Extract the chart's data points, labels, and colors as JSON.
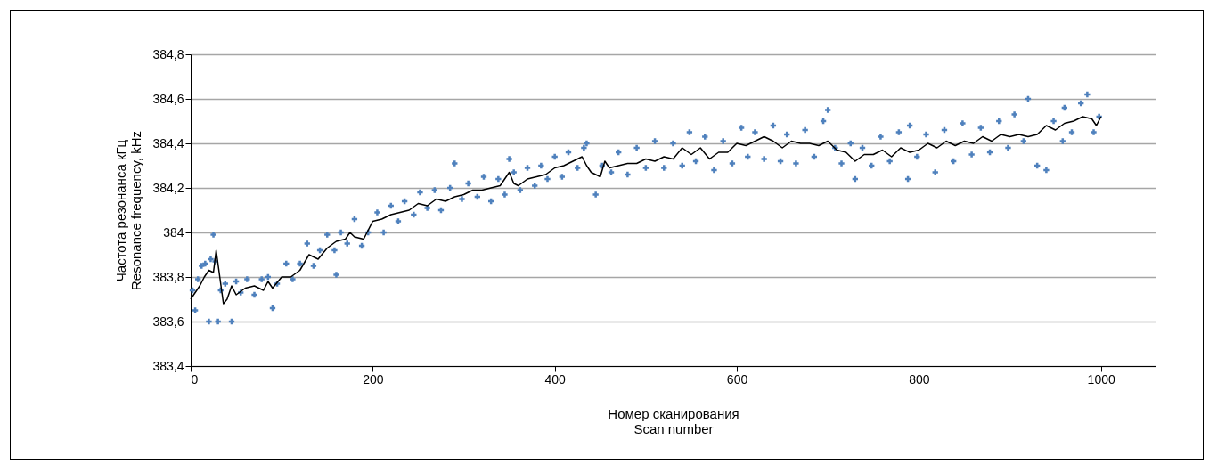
{
  "chart_data": {
    "type": "scatter",
    "xlabel": "Номер сканирования\nScan number",
    "ylabel": "Частота резонанса кГц\nResonance frequency, kHz",
    "xlim": [
      0,
      1060
    ],
    "xticks": [
      0,
      200,
      400,
      600,
      800,
      1000
    ],
    "ylim": [
      383.4,
      384.8
    ],
    "yticks": [
      {
        "value": 383.4,
        "label": "383,4"
      },
      {
        "value": 383.6,
        "label": "383,6"
      },
      {
        "value": 383.8,
        "label": "383,8"
      },
      {
        "value": 384,
        "label": "384"
      },
      {
        "value": 384.2,
        "label": "384,2"
      },
      {
        "value": 384.4,
        "label": "384,4"
      },
      {
        "value": 384.6,
        "label": "384,6"
      },
      {
        "value": 384.8,
        "label": "384,8"
      }
    ],
    "grid": "y",
    "marker": "cross",
    "series": [
      {
        "type": "scatter",
        "color": "#4f81bd",
        "x": [
          2,
          5,
          8,
          12,
          16,
          20,
          22,
          25,
          27,
          30,
          33,
          38,
          45,
          50,
          55,
          62,
          70,
          78,
          85,
          90,
          95,
          105,
          112,
          120,
          128,
          135,
          142,
          150,
          158,
          160,
          165,
          172,
          180,
          188,
          195,
          205,
          212,
          220,
          228,
          235,
          245,
          252,
          260,
          268,
          275,
          285,
          290,
          298,
          305,
          315,
          322,
          330,
          338,
          345,
          350,
          355,
          362,
          370,
          378,
          385,
          392,
          400,
          408,
          415,
          425,
          432,
          435,
          445,
          452,
          462,
          470,
          480,
          490,
          500,
          510,
          520,
          530,
          540,
          548,
          555,
          565,
          575,
          585,
          595,
          605,
          612,
          620,
          630,
          640,
          648,
          655,
          665,
          675,
          685,
          695,
          700,
          708,
          715,
          725,
          730,
          738,
          748,
          758,
          768,
          778,
          788,
          790,
          798,
          808,
          818,
          828,
          838,
          848,
          858,
          868,
          878,
          888,
          898,
          905,
          915,
          920,
          930,
          940,
          948,
          958,
          960,
          968,
          978,
          985,
          992,
          998
        ],
        "values": [
          383.74,
          383.65,
          383.79,
          383.85,
          383.86,
          383.6,
          383.88,
          383.99,
          383.87,
          383.6,
          383.74,
          383.77,
          383.6,
          383.78,
          383.73,
          383.79,
          383.72,
          383.79,
          383.8,
          383.66,
          383.77,
          383.86,
          383.79,
          383.86,
          383.95,
          383.85,
          383.92,
          383.99,
          383.92,
          383.81,
          384.0,
          383.95,
          384.06,
          383.94,
          384.0,
          384.09,
          384.0,
          384.12,
          384.05,
          384.14,
          384.08,
          384.18,
          384.11,
          384.19,
          384.1,
          384.2,
          384.31,
          384.15,
          384.22,
          384.16,
          384.25,
          384.14,
          384.24,
          384.17,
          384.33,
          384.27,
          384.19,
          384.29,
          384.21,
          384.3,
          384.24,
          384.34,
          384.25,
          384.36,
          384.29,
          384.38,
          384.4,
          384.17,
          384.3,
          384.27,
          384.36,
          384.26,
          384.38,
          384.29,
          384.41,
          384.29,
          384.4,
          384.3,
          384.45,
          384.32,
          384.43,
          384.28,
          384.41,
          384.31,
          384.47,
          384.34,
          384.45,
          384.33,
          384.48,
          384.32,
          384.44,
          384.31,
          384.46,
          384.34,
          384.5,
          384.55,
          384.38,
          384.31,
          384.4,
          384.24,
          384.38,
          384.3,
          384.43,
          384.32,
          384.45,
          384.24,
          384.48,
          384.34,
          384.44,
          384.27,
          384.46,
          384.32,
          384.49,
          384.35,
          384.47,
          384.36,
          384.5,
          384.38,
          384.53,
          384.41,
          384.6,
          384.3,
          384.28,
          384.5,
          384.41,
          384.56,
          384.45,
          384.58,
          384.62,
          384.45,
          384.52
        ]
      },
      {
        "type": "line",
        "color": "#000000",
        "marker": "none",
        "line_style": "solid",
        "x": [
          0,
          10,
          15,
          20,
          25,
          28,
          32,
          36,
          40,
          45,
          50,
          60,
          70,
          80,
          85,
          90,
          100,
          110,
          120,
          130,
          140,
          150,
          160,
          170,
          175,
          180,
          190,
          200,
          210,
          220,
          230,
          240,
          250,
          260,
          270,
          280,
          290,
          300,
          310,
          320,
          330,
          340,
          350,
          355,
          360,
          370,
          380,
          390,
          400,
          410,
          420,
          430,
          435,
          440,
          450,
          455,
          460,
          470,
          480,
          490,
          500,
          510,
          520,
          530,
          540,
          550,
          560,
          570,
          580,
          590,
          600,
          610,
          620,
          630,
          640,
          650,
          660,
          670,
          680,
          690,
          700,
          710,
          720,
          730,
          740,
          750,
          760,
          770,
          780,
          790,
          800,
          810,
          820,
          830,
          840,
          850,
          860,
          870,
          880,
          890,
          900,
          910,
          920,
          930,
          940,
          950,
          960,
          970,
          980,
          990,
          995,
          1000
        ],
        "values": [
          383.7,
          383.76,
          383.8,
          383.83,
          383.82,
          383.92,
          383.8,
          383.68,
          383.7,
          383.76,
          383.72,
          383.75,
          383.76,
          383.74,
          383.78,
          383.75,
          383.8,
          383.8,
          383.83,
          383.9,
          383.88,
          383.93,
          383.96,
          383.97,
          384.0,
          383.98,
          383.97,
          384.05,
          384.06,
          384.08,
          384.09,
          384.1,
          384.13,
          384.12,
          384.15,
          384.14,
          384.16,
          384.17,
          384.19,
          384.19,
          384.2,
          384.21,
          384.27,
          384.22,
          384.21,
          384.24,
          384.25,
          384.26,
          384.29,
          384.3,
          384.32,
          384.34,
          384.3,
          384.27,
          384.25,
          384.32,
          384.29,
          384.3,
          384.31,
          384.31,
          384.33,
          384.32,
          384.34,
          384.33,
          384.38,
          384.35,
          384.38,
          384.33,
          384.36,
          384.36,
          384.4,
          384.39,
          384.41,
          384.43,
          384.41,
          384.38,
          384.41,
          384.4,
          384.4,
          384.39,
          384.41,
          384.37,
          384.36,
          384.32,
          384.35,
          384.35,
          384.37,
          384.34,
          384.38,
          384.36,
          384.37,
          384.4,
          384.38,
          384.41,
          384.39,
          384.41,
          384.4,
          384.43,
          384.41,
          384.44,
          384.43,
          384.44,
          384.43,
          384.44,
          384.48,
          384.46,
          384.49,
          384.5,
          384.52,
          384.51,
          384.48,
          384.52
        ]
      }
    ]
  }
}
